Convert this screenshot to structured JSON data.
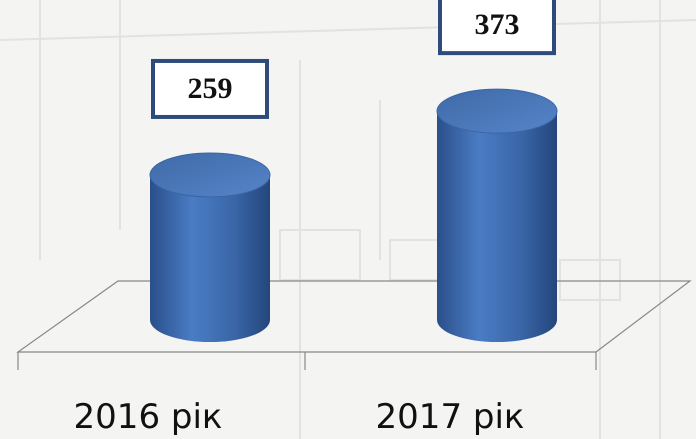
{
  "chart_data": {
    "type": "bar",
    "categories": [
      "2016 рік",
      "2017 рік"
    ],
    "values": [
      259,
      373
    ],
    "color": "#3a66a8"
  }
}
